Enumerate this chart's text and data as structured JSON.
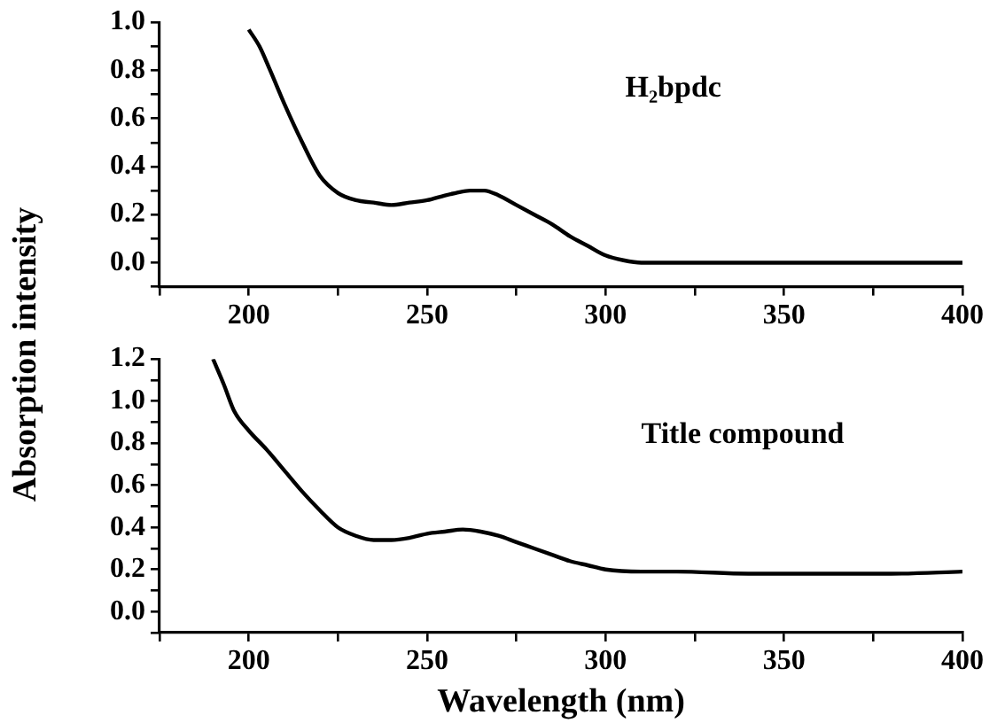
{
  "chart_data": [
    {
      "type": "line",
      "ylabel": "Absorption intensity",
      "annotations": [
        "H₂bpdc"
      ],
      "marker": "none",
      "grid": false,
      "legend": false,
      "x": [
        200,
        203,
        206,
        210,
        215,
        220,
        225,
        230,
        235,
        240,
        245,
        250,
        255,
        258,
        262,
        266,
        270,
        275,
        280,
        285,
        290,
        295,
        300,
        305,
        310,
        320,
        340,
        360,
        380,
        400
      ],
      "series": [
        {
          "color": "#000000",
          "values": [
            0.97,
            0.9,
            0.8,
            0.66,
            0.5,
            0.36,
            0.29,
            0.26,
            0.25,
            0.24,
            0.25,
            0.26,
            0.28,
            0.29,
            0.3,
            0.3,
            0.28,
            0.24,
            0.2,
            0.16,
            0.11,
            0.07,
            0.03,
            0.01,
            0.0,
            0.0,
            0.0,
            0.0,
            0.0,
            0.0
          ]
        }
      ],
      "xlim": [
        175,
        400
      ],
      "xticks": [
        {
          "value": 175,
          "label": null
        },
        200,
        {
          "value": 225,
          "label": null
        },
        250,
        {
          "value": 275,
          "label": null
        },
        300,
        {
          "value": 325,
          "label": null
        },
        350,
        {
          "value": 375,
          "label": null
        },
        400
      ],
      "ylim": [
        -0.1,
        1.0
      ],
      "yticks": [
        {
          "value": -0.1,
          "label": null
        },
        {
          "value": 0,
          "label": "0.0"
        },
        {
          "value": 0.1,
          "label": null
        },
        0.2,
        {
          "value": 0.3,
          "label": null
        },
        0.4,
        {
          "value": 0.5,
          "label": null
        },
        0.6,
        {
          "value": 0.7,
          "label": null
        },
        0.8,
        {
          "value": 0.9,
          "label": null
        },
        {
          "value": 1,
          "label": "1.0"
        }
      ]
    },
    {
      "type": "line",
      "xlabel": "Wavelength (nm)",
      "annotations": [
        "Title compound"
      ],
      "marker": "none",
      "grid": false,
      "legend": false,
      "x": [
        190,
        193,
        196,
        200,
        205,
        210,
        215,
        220,
        225,
        230,
        235,
        240,
        245,
        250,
        255,
        260,
        265,
        270,
        275,
        280,
        285,
        290,
        295,
        300,
        310,
        320,
        340,
        360,
        380,
        400
      ],
      "series": [
        {
          "color": "#000000",
          "values": [
            1.2,
            1.08,
            0.95,
            0.86,
            0.77,
            0.67,
            0.57,
            0.48,
            0.4,
            0.36,
            0.34,
            0.34,
            0.35,
            0.37,
            0.38,
            0.39,
            0.38,
            0.36,
            0.33,
            0.3,
            0.27,
            0.24,
            0.22,
            0.2,
            0.19,
            0.19,
            0.18,
            0.18,
            0.18,
            0.19
          ]
        }
      ],
      "xlim": [
        175,
        400
      ],
      "xticks": [
        {
          "value": 175,
          "label": null
        },
        200,
        {
          "value": 225,
          "label": null
        },
        250,
        {
          "value": 275,
          "label": null
        },
        300,
        {
          "value": 325,
          "label": null
        },
        350,
        {
          "value": 375,
          "label": null
        },
        400
      ],
      "ylim": [
        -0.1,
        1.2
      ],
      "yticks": [
        {
          "value": -0.1,
          "label": null
        },
        {
          "value": 0,
          "label": "0.0"
        },
        {
          "value": 0.1,
          "label": null
        },
        0.2,
        {
          "value": 0.3,
          "label": null
        },
        0.4,
        {
          "value": 0.5,
          "label": null
        },
        0.6,
        {
          "value": 0.7,
          "label": null
        },
        0.8,
        {
          "value": 0.9,
          "label": null
        },
        {
          "value": 1,
          "label": "1.0"
        },
        {
          "value": 1.1,
          "label": null
        },
        1.2
      ]
    }
  ]
}
